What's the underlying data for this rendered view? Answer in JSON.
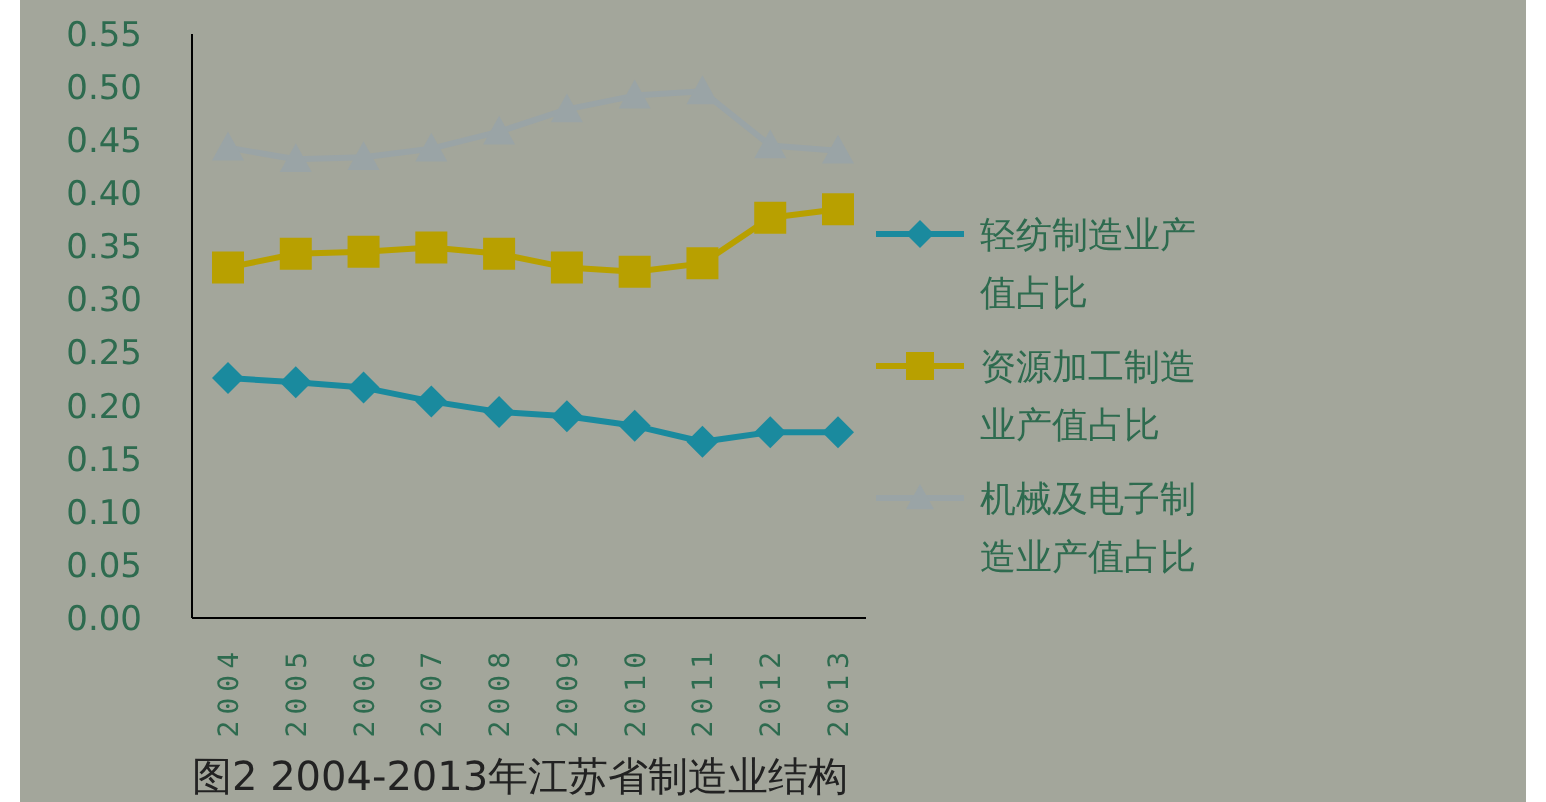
{
  "chart_data": {
    "type": "line",
    "title": "图2  2004-2013年江苏省制造业结构",
    "categories": [
      "2004",
      "2005",
      "2006",
      "2007",
      "2008",
      "2009",
      "2010",
      "2011",
      "2012",
      "2013"
    ],
    "series": [
      {
        "name": "轻纺制造业产值占比",
        "color": "#1a8a9e",
        "marker": "diamond",
        "values": [
          0.226,
          0.222,
          0.217,
          0.204,
          0.194,
          0.19,
          0.181,
          0.166,
          0.175,
          0.175
        ]
      },
      {
        "name": "资源加工制造业产值占比",
        "color": "#b8a000",
        "marker": "square",
        "values": [
          0.33,
          0.343,
          0.345,
          0.349,
          0.343,
          0.33,
          0.326,
          0.334,
          0.377,
          0.385
        ]
      },
      {
        "name": "机械及电子制造业产值占比",
        "color": "#9aa4a6",
        "marker": "triangle",
        "values": [
          0.443,
          0.432,
          0.434,
          0.442,
          0.458,
          0.479,
          0.492,
          0.496,
          0.445,
          0.44
        ]
      }
    ],
    "ylim": [
      0,
      0.55
    ],
    "yticks": [
      {
        "value": 0,
        "label": "0.00"
      },
      {
        "value": 0.05,
        "label": "0.05"
      },
      {
        "value": 0.1,
        "label": "0.10"
      },
      {
        "value": 0.15,
        "label": "0.15"
      },
      {
        "value": 0.2,
        "label": "0.20"
      },
      {
        "value": 0.25,
        "label": "0.25"
      },
      {
        "value": 0.3,
        "label": "0.30"
      },
      {
        "value": 0.35,
        "label": "0.35"
      },
      {
        "value": 0.4,
        "label": "0.40"
      },
      {
        "value": 0.45,
        "label": "0.45"
      },
      {
        "value": 0.5,
        "label": "0.50"
      },
      {
        "value": 0.55,
        "label": "0.55"
      }
    ],
    "legend": "right",
    "grid": false
  }
}
